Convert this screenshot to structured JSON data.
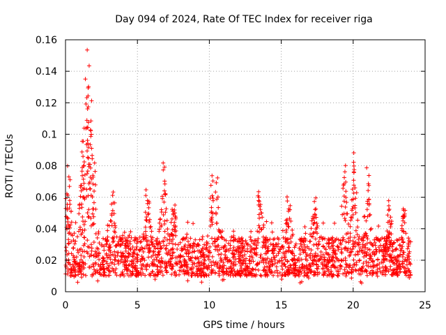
{
  "chart_data": {
    "type": "scatter",
    "title": "Day 094 of 2024, Rate Of TEC Index for receiver riga",
    "xlabel": "GPS time / hours",
    "ylabel": "ROTI / TECUs",
    "xlim": [
      0,
      25
    ],
    "ylim": [
      0,
      0.16
    ],
    "xticks": [
      0,
      5,
      10,
      15,
      20,
      25
    ],
    "yticks": [
      0,
      0.02,
      0.04,
      0.06,
      0.08,
      0.1,
      0.12,
      0.14,
      0.16
    ],
    "xtick_labels": [
      "0",
      "5",
      "10",
      "15",
      "20",
      "25"
    ],
    "ytick_labels": [
      "0",
      "0.02",
      "0.04",
      "0.06",
      "0.08",
      "0.1",
      "0.12",
      "0.14",
      "0.16"
    ],
    "grid": true,
    "marker": "+",
    "color": "#ff0000",
    "series": [
      {
        "name": "ROTI",
        "x_range": [
          0,
          24
        ],
        "baseline_band": [
          0.01,
          0.035
        ],
        "peaks": [
          {
            "x": 0.1,
            "y": 0.062
          },
          {
            "x": 0.2,
            "y": 0.081
          },
          {
            "x": 1.2,
            "y": 0.104
          },
          {
            "x": 1.5,
            "y": 0.138
          },
          {
            "x": 1.55,
            "y": 0.156
          },
          {
            "x": 1.7,
            "y": 0.131
          },
          {
            "x": 1.8,
            "y": 0.1
          },
          {
            "x": 2.0,
            "y": 0.084
          },
          {
            "x": 3.3,
            "y": 0.065
          },
          {
            "x": 5.7,
            "y": 0.066
          },
          {
            "x": 6.8,
            "y": 0.083
          },
          {
            "x": 7.5,
            "y": 0.058
          },
          {
            "x": 10.2,
            "y": 0.077
          },
          {
            "x": 10.5,
            "y": 0.075
          },
          {
            "x": 13.5,
            "y": 0.066
          },
          {
            "x": 15.5,
            "y": 0.063
          },
          {
            "x": 17.3,
            "y": 0.06
          },
          {
            "x": 19.4,
            "y": 0.084
          },
          {
            "x": 20.1,
            "y": 0.089
          },
          {
            "x": 21.0,
            "y": 0.08
          },
          {
            "x": 22.5,
            "y": 0.058
          },
          {
            "x": 23.5,
            "y": 0.056
          }
        ]
      }
    ]
  }
}
